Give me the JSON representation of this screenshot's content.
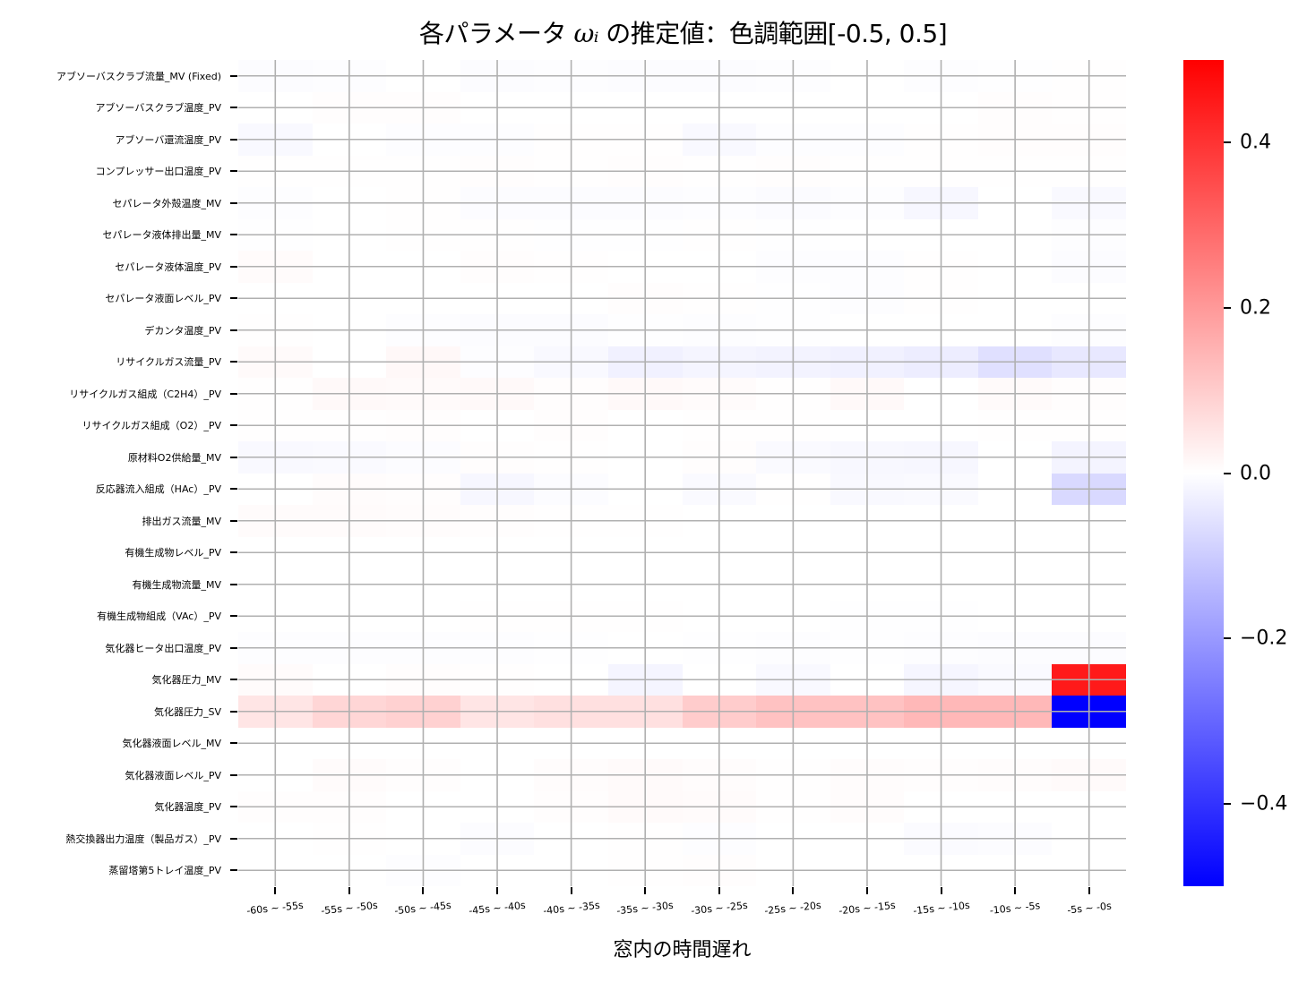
{
  "title": {
    "prefix": "各パラメータ ",
    "omega": "ωᵢ",
    "suffix": " の推定値：色調範囲[-0.5, 0.5]"
  },
  "colors": {
    "negative": "#0000ff",
    "zero": "#ffffff",
    "positive": "#ff0000",
    "gridline": "#b0b0b0"
  },
  "chart_data": {
    "type": "heatmap",
    "title": "各パラメータ ωᵢ の推定値：色調範囲[-0.5, 0.5]",
    "xlabel": "窓内の時間遅れ",
    "ylabel": "",
    "colormap": "bwr",
    "vmin": -0.5,
    "vmax": 0.5,
    "grid": true,
    "colorbar_ticks": [
      "0.4",
      "0.2",
      "0.0",
      "−0.2",
      "−0.4"
    ],
    "colorbar_tick_values": [
      0.4,
      0.2,
      0.0,
      -0.2,
      -0.4
    ],
    "x": [
      "-60s ~ -55s",
      "-55s ~ -50s",
      "-50s ~ -45s",
      "-45s ~ -40s",
      "-40s ~ -35s",
      "-35s ~ -30s",
      "-30s ~ -25s",
      "-25s ~ -20s",
      "-20s ~ -15s",
      "-15s ~ -10s",
      "-10s ~ -5s",
      "-5s ~ -0s"
    ],
    "y": [
      "アブソーバスクラブ流量_MV (Fixed)",
      "アブソーバスクラブ温度_PV",
      "アブソーバ還流温度_PV",
      "コンプレッサー出口温度_PV",
      "セパレータ外殻温度_MV",
      "セパレータ液体排出量_MV",
      "セパレータ液体温度_PV",
      "セパレータ液面レベル_PV",
      "デカンタ温度_PV",
      "リサイクルガス流量_PV",
      "リサイクルガス組成（C2H4）_PV",
      "リサイクルガス組成（O2）_PV",
      "原材料O2供給量_MV",
      "反応器流入組成（HAc）_PV",
      "排出ガス流量_MV",
      "有機生成物レベル_PV",
      "有機生成物流量_MV",
      "有機生成物組成（VAc）_PV",
      "気化器ヒータ出口温度_PV",
      "気化器圧力_MV",
      "気化器圧力_SV",
      "気化器液面レベル_MV",
      "気化器液面レベル_PV",
      "気化器温度_PV",
      "熱交換器出力温度（製品ガス）_PV",
      "蒸留塔第5トレイ温度_PV"
    ],
    "values": [
      [
        -0.005,
        -0.003,
        0.0,
        -0.005,
        -0.003,
        -0.005,
        -0.005,
        -0.004,
        0.0,
        -0.004,
        -0.002,
        0.002
      ],
      [
        0.0,
        0.003,
        0.003,
        0.0,
        0.0,
        0.0,
        0.0,
        0.0,
        0.0,
        0.0,
        0.003,
        0.002
      ],
      [
        -0.012,
        0.0,
        -0.004,
        -0.004,
        0.002,
        0.002,
        -0.012,
        -0.004,
        -0.004,
        0.002,
        0.003,
        0.003
      ],
      [
        0.002,
        0.002,
        0.002,
        0.003,
        0.002,
        0.003,
        0.002,
        0.003,
        0.002,
        0.002,
        0.002,
        0.002
      ],
      [
        -0.004,
        0.0,
        0.002,
        -0.005,
        -0.006,
        -0.006,
        -0.003,
        -0.008,
        -0.004,
        -0.015,
        0.0,
        -0.012
      ],
      [
        -0.002,
        0.0,
        0.002,
        0.001,
        -0.002,
        -0.002,
        0.002,
        -0.002,
        0.0,
        0.0,
        0.0,
        -0.004
      ],
      [
        0.008,
        0.0,
        0.0,
        0.003,
        0.002,
        0.0,
        0.0,
        -0.003,
        -0.004,
        0.002,
        0.0,
        -0.006
      ],
      [
        0.0,
        0.0,
        0.0,
        0.0,
        0.0,
        0.003,
        0.002,
        -0.002,
        -0.004,
        0.002,
        0.0,
        0.0
      ],
      [
        0.002,
        0.0,
        -0.003,
        -0.006,
        -0.006,
        -0.002,
        -0.003,
        -0.002,
        0.0,
        0.0,
        0.0,
        -0.004
      ],
      [
        0.01,
        0.0,
        0.014,
        -0.004,
        -0.012,
        -0.028,
        -0.02,
        -0.024,
        -0.028,
        -0.036,
        -0.06,
        -0.045
      ],
      [
        0.002,
        0.012,
        0.01,
        0.012,
        0.004,
        0.012,
        0.008,
        0.002,
        0.012,
        0.0,
        0.01,
        0.003
      ],
      [
        0.002,
        0.002,
        0.003,
        0.0,
        0.003,
        0.0,
        0.002,
        0.002,
        0.0,
        0.0,
        0.002,
        0.002
      ],
      [
        -0.012,
        -0.01,
        -0.006,
        0.003,
        0.002,
        0.0,
        0.003,
        -0.01,
        -0.014,
        -0.016,
        0.0,
        -0.022
      ],
      [
        0.0,
        0.006,
        0.004,
        -0.016,
        -0.006,
        0.0,
        -0.01,
        0.002,
        -0.012,
        -0.01,
        0.0,
        -0.075
      ],
      [
        0.008,
        0.008,
        0.006,
        0.004,
        0.002,
        0.002,
        0.0,
        0.0,
        0.0,
        0.0,
        0.0,
        0.0
      ],
      [
        0.0,
        0.0,
        0.0,
        0.0,
        0.0,
        0.0,
        0.0,
        0.0,
        0.0,
        0.0,
        0.0,
        0.0
      ],
      [
        0.0,
        0.0,
        0.0,
        0.0,
        0.0,
        0.0,
        0.0,
        0.0,
        0.0,
        0.0,
        0.0,
        0.0
      ],
      [
        0.0,
        0.0,
        0.0,
        0.002,
        0.002,
        0.001,
        0.0,
        0.0,
        -0.002,
        -0.002,
        0.0,
        0.0
      ],
      [
        -0.003,
        -0.004,
        -0.003,
        -0.004,
        -0.002,
        0.0,
        -0.002,
        -0.004,
        -0.002,
        -0.004,
        -0.006,
        -0.005
      ],
      [
        0.008,
        0.0,
        0.004,
        0.002,
        0.0,
        -0.02,
        0.0,
        -0.012,
        0.0,
        -0.018,
        -0.01,
        0.45
      ],
      [
        0.05,
        0.08,
        0.09,
        0.05,
        0.06,
        0.06,
        0.1,
        0.12,
        0.12,
        0.14,
        0.14,
        -0.5
      ],
      [
        0.0,
        0.0,
        0.0,
        0.0,
        0.0,
        0.0,
        0.0,
        0.0,
        0.0,
        0.0,
        0.0,
        0.0
      ],
      [
        0.0,
        0.008,
        0.004,
        0.0,
        0.005,
        0.01,
        0.006,
        0.002,
        0.006,
        0.004,
        0.006,
        0.01
      ],
      [
        0.003,
        0.003,
        0.0,
        0.0,
        0.003,
        0.01,
        0.008,
        0.002,
        0.006,
        0.0,
        0.0,
        0.0
      ],
      [
        0.0,
        0.002,
        0.0,
        -0.005,
        0.0,
        0.002,
        -0.004,
        0.0,
        0.0,
        -0.008,
        -0.006,
        0.0
      ],
      [
        0.0,
        0.0,
        -0.004,
        0.0,
        0.0,
        0.002,
        0.003,
        0.0,
        0.0,
        0.0,
        0.0,
        0.0
      ]
    ]
  }
}
